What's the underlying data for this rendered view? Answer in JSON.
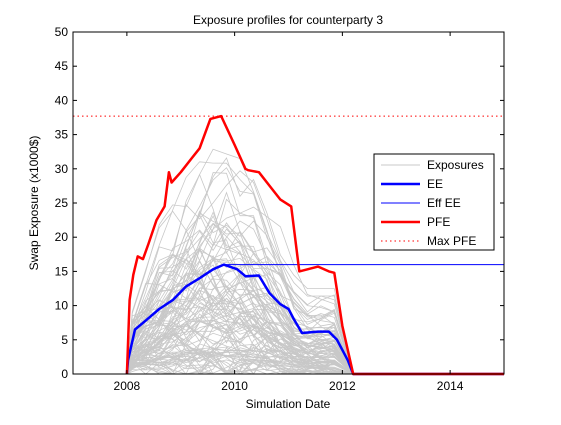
{
  "chart_data": {
    "type": "line",
    "title": "Exposure profiles for counterparty 3",
    "xlabel": "Simulation Date",
    "ylabel": "Swap Exposure (x1000$)",
    "xlim": [
      2007,
      2015
    ],
    "ylim": [
      0,
      50
    ],
    "xticks": [
      2008,
      2010,
      2012,
      2014
    ],
    "yticks": [
      0,
      5,
      10,
      15,
      20,
      25,
      30,
      35,
      40,
      45,
      50
    ],
    "grid": false,
    "legend_position": "right",
    "colors": {
      "exposures": "#c8c8c8",
      "ee": "#0000ff",
      "eff_ee": "#0000ff",
      "pfe": "#ff0000",
      "max_pfe": "#ff0000"
    },
    "series": [
      {
        "name": "Exposures",
        "style": "thin-gray-paths",
        "note_values": "bundle of simulated paths spanning 0 to about 45, from 2008 to 2012.2"
      },
      {
        "name": "EE",
        "style": "thick-blue",
        "x": [
          2008.0,
          2008.02,
          2008.15,
          2008.35,
          2008.6,
          2008.85,
          2009.1,
          2009.35,
          2009.6,
          2009.8,
          2010.05,
          2010.2,
          2010.45,
          2010.65,
          2010.85,
          2011.0,
          2011.1,
          2011.25,
          2011.55,
          2011.75,
          2011.9,
          2012.0,
          2012.1,
          2012.2,
          2015.0
        ],
        "y": [
          0,
          2,
          6.5,
          7.8,
          9.5,
          10.8,
          12.8,
          14.0,
          15.3,
          16.0,
          15.3,
          14.3,
          14.4,
          11.8,
          10.2,
          9.5,
          8.0,
          6.0,
          6.2,
          6.2,
          5.0,
          3.5,
          2.0,
          0,
          0
        ]
      },
      {
        "name": "Eff EE",
        "style": "thin-blue",
        "x": [
          2008.0,
          2008.02,
          2008.15,
          2008.35,
          2008.6,
          2008.85,
          2009.1,
          2009.35,
          2009.6,
          2009.8,
          2015.0
        ],
        "y": [
          0,
          2,
          6.5,
          7.8,
          9.5,
          10.8,
          12.8,
          14.0,
          15.3,
          16.0,
          16.0
        ]
      },
      {
        "name": "PFE",
        "style": "thick-red",
        "x": [
          2008.0,
          2008.05,
          2008.12,
          2008.2,
          2008.3,
          2008.4,
          2008.55,
          2008.7,
          2008.78,
          2008.83,
          2009.0,
          2009.2,
          2009.35,
          2009.55,
          2009.75,
          2010.0,
          2010.2,
          2010.25,
          2010.45,
          2010.65,
          2010.85,
          2011.05,
          2011.2,
          2011.55,
          2011.75,
          2011.85,
          2012.0,
          2012.2,
          2015.0
        ],
        "y": [
          0,
          10.8,
          14.5,
          17.2,
          16.8,
          19.0,
          22.5,
          24.5,
          29.5,
          28.0,
          29.5,
          31.5,
          33.0,
          37.3,
          37.7,
          33.5,
          30.0,
          29.8,
          29.5,
          27.5,
          25.5,
          24.5,
          15.0,
          15.7,
          15.0,
          14.8,
          7.0,
          0,
          0
        ]
      },
      {
        "name": "Max PFE",
        "style": "dotted-red",
        "x": [
          2007,
          2015
        ],
        "y": [
          37.7,
          37.7
        ]
      }
    ]
  }
}
